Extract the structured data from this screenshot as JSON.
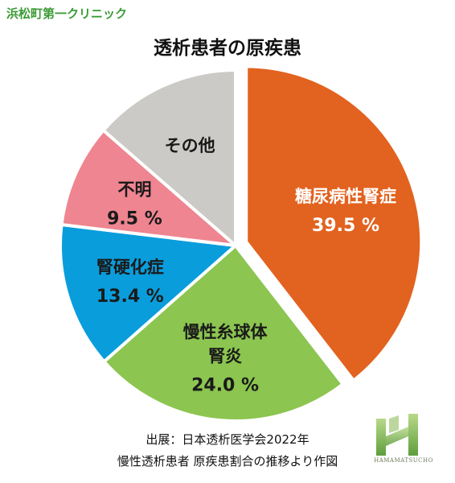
{
  "header": {
    "clinic_name": "浜松町第一クリニック"
  },
  "chart_data": {
    "type": "pie",
    "title": "透析患者の原疾患",
    "slices": [
      {
        "label_lines": [
          "糖尿病性腎症"
        ],
        "value": 39.5,
        "value_label": "39.5 %",
        "color": "#e2621f",
        "text_color": "#ffffff",
        "exploded": true
      },
      {
        "label_lines": [
          "慢性糸球体",
          "腎炎"
        ],
        "value": 24.0,
        "value_label": "24.0 %",
        "color": "#8cc550",
        "text_color": "#1a1a1a",
        "exploded": false
      },
      {
        "label_lines": [
          "腎硬化症"
        ],
        "value": 13.4,
        "value_label": "13.4 %",
        "color": "#0a9ddc",
        "text_color": "#1a1a1a",
        "exploded": false
      },
      {
        "label_lines": [
          "不明"
        ],
        "value": 9.5,
        "value_label": "9.5 %",
        "color": "#ee8590",
        "text_color": "#1a1a1a",
        "exploded": false
      },
      {
        "label_lines": [
          "その他"
        ],
        "value": 13.6,
        "value_label": "",
        "color": "#cbcac6",
        "text_color": "#1a1a1a",
        "exploded": false
      }
    ]
  },
  "source": {
    "line1": "出展：日本透析医学会2022年",
    "line2": "慢性透析患者 原疾患割合の推移より作図"
  },
  "logo": {
    "text": "HAMAMATSUCHO"
  }
}
